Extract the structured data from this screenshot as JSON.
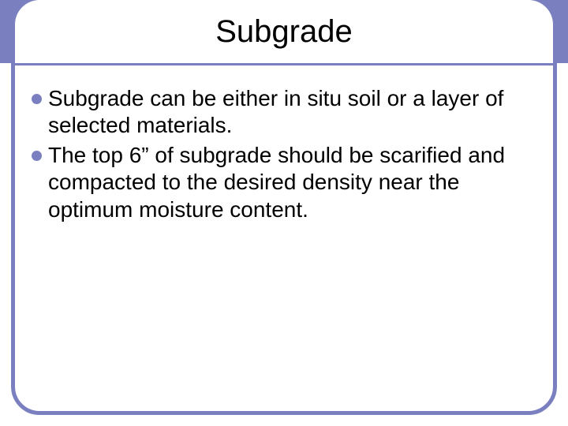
{
  "colors": {
    "frame": "#7a80bf",
    "band": "#7a80bf",
    "bullet": "#7a80bf",
    "text": "#000000",
    "background": "#ffffff"
  },
  "typography": {
    "title_fontsize": 40,
    "body_fontsize": 28,
    "font_family": "Arial"
  },
  "title": "Subgrade",
  "bullets": [
    "Subgrade can be either in situ soil or a layer of selected materials.",
    "The top 6” of subgrade should be scarified and compacted to the desired density near the optimum moisture content."
  ]
}
